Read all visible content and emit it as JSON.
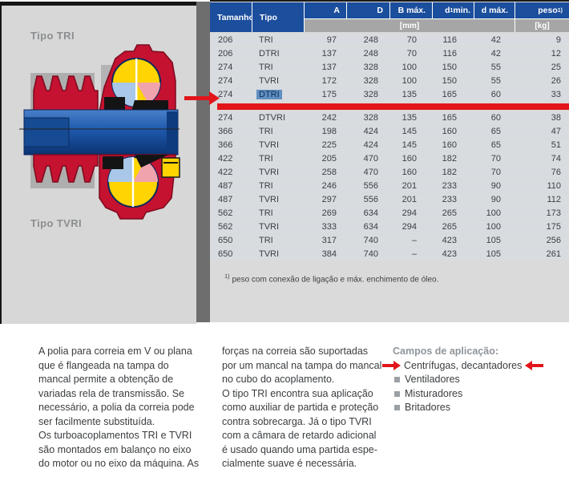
{
  "panel": {
    "type_label_tri": "Tipo TRI",
    "type_label_tvri": "Tipo TVRI",
    "illustration": "cross-section of turbo couplings, types TRI and TVRI"
  },
  "table": {
    "header": {
      "tamanho": "Tamanho",
      "tipo": "Tipo",
      "a": "A",
      "d": "D",
      "b_max": "B máx.",
      "d1_base": "d",
      "d1_sub": "1",
      "d1_rest": " min.",
      "d_max": "d máx.",
      "peso_base": "peso",
      "peso_sup": "1)"
    },
    "units": {
      "mm": "[mm]",
      "kg": "[kg]"
    },
    "rows": [
      [
        "206",
        "TRI",
        "97",
        "248",
        "70",
        "116",
        "42",
        "9"
      ],
      [
        "206",
        "DTRI",
        "137",
        "248",
        "70",
        "116",
        "42",
        "12"
      ],
      [
        "274",
        "TRI",
        "137",
        "328",
        "100",
        "150",
        "55",
        "25"
      ],
      [
        "274",
        "TVRI",
        "172",
        "328",
        "100",
        "150",
        "55",
        "26"
      ],
      [
        "274",
        "DTRI",
        "175",
        "328",
        "135",
        "165",
        "60",
        "33"
      ],
      [
        "274",
        "DTVRI",
        "242",
        "328",
        "135",
        "165",
        "60",
        "38"
      ],
      [
        "366",
        "TRI",
        "198",
        "424",
        "145",
        "160",
        "65",
        "47"
      ],
      [
        "366",
        "TVRI",
        "225",
        "424",
        "145",
        "160",
        "65",
        "51"
      ],
      [
        "422",
        "TRI",
        "205",
        "470",
        "160",
        "182",
        "70",
        "74"
      ],
      [
        "422",
        "TVRI",
        "258",
        "470",
        "160",
        "182",
        "70",
        "76"
      ],
      [
        "487",
        "TRI",
        "246",
        "556",
        "201",
        "233",
        "90",
        "110"
      ],
      [
        "487",
        "TVRI",
        "297",
        "556",
        "201",
        "233",
        "90",
        "112"
      ],
      [
        "562",
        "TRI",
        "269",
        "634",
        "294",
        "265",
        "100",
        "173"
      ],
      [
        "562",
        "TVRI",
        "333",
        "634",
        "294",
        "265",
        "100",
        "175"
      ],
      [
        "650",
        "TRI",
        "317",
        "740",
        "–",
        "423",
        "105",
        "256"
      ],
      [
        "650",
        "TVRI",
        "384",
        "740",
        "–",
        "423",
        "105",
        "261"
      ]
    ],
    "highlight": {
      "row_index": 4,
      "col_index": 1
    },
    "footnote": {
      "sup": "1)",
      "text": " peso com conexão de ligação e máx. enchimento de óleo."
    }
  },
  "annotations": {
    "row_pointer_icon": "red-arrow-right",
    "row_underline": "red-highlight-bar",
    "app_left_icon": "red-arrow-right",
    "app_right_icon": "red-arrow-left"
  },
  "body": {
    "col1": "A polia para correia em V ou plana\nque é flangeada na tampa do\nmancal permite a obtenção de\nvariadas rela de transmissão. Se\nnecessário, a polia da correia pode\nser facilmente substituída.\nOs turboacoplamentos TRI e TVRI\nsão montados em balanço no eixo\ndo motor ou no eixo da máquina. As",
    "col2": "forças na correia são suportadas\npor um mancal na tampa do mancal\nno cubo do acoplamento.\nO tipo TRI encontra sua aplicação\ncomo auxiliar de partida e proteção\ncontra sobrecarga. Já o tipo TVRI\ncom a câmara de retardo adicional\né usado quando uma partida espe-\ncialmente suave é necessária.",
    "applications": {
      "heading": "Campos de aplicação:",
      "highlighted": "Centrífugas, decantadores",
      "items": [
        "Ventiladores",
        "Misturadores",
        "Britadores"
      ]
    }
  },
  "colors": {
    "header_blue": "#1b4e9c",
    "accent_red": "#e2151b",
    "selection_blue": "#608fc2",
    "panel_gray": "#d7d7d7",
    "divider_gray": "#6e6e6e",
    "subheader_gray": "#a6a6a6",
    "row_gray": "#d8dbdf"
  }
}
